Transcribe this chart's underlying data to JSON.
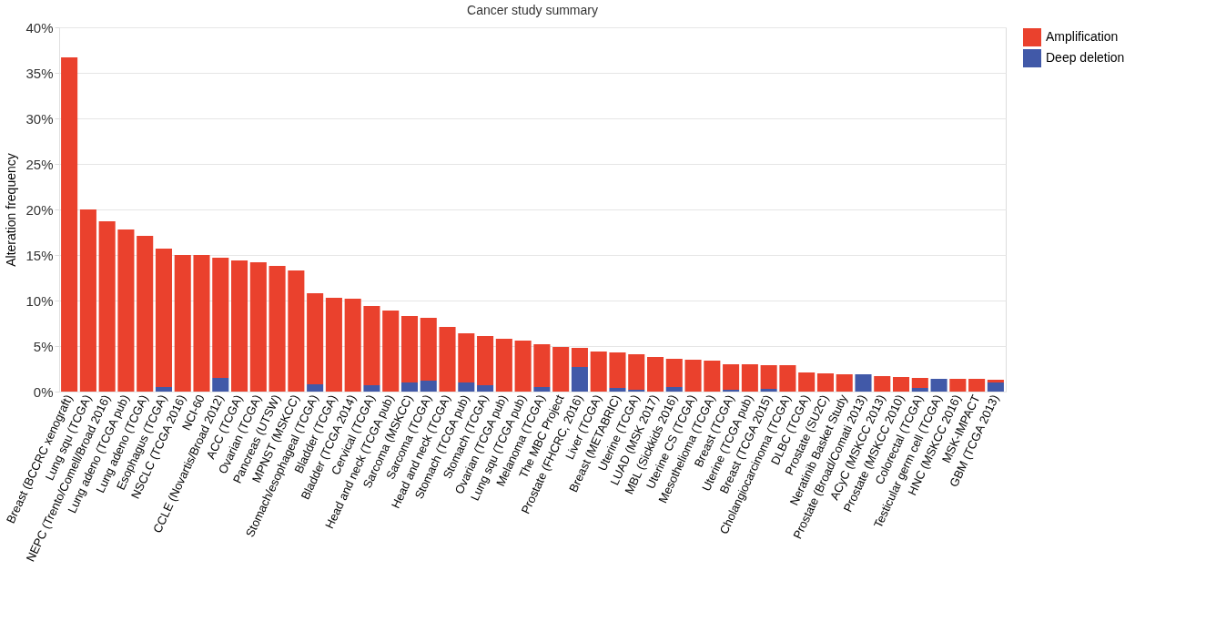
{
  "chart_data": {
    "type": "bar",
    "title": "Cancer study summary",
    "ylabel": "Alteration frequency",
    "categories": [
      "Breast (BCCRC xenograft)",
      "Lung squ (TCGA)",
      "NEPC (Trento/Comell/Broad 2016)",
      "Lung adeno (TCGA pub)",
      "Lung adeno (TCGA)",
      "Esophagus (TCGA)",
      "NSCLC (TCGA 2016)",
      "NCI-60",
      "CCLE (Novartis/Broad 2012)",
      "ACC (TCGA)",
      "Ovarian (TCGA)",
      "Pancreas (UTSW)",
      "MPNST (MSKCC)",
      "Stomach/esophageal (TCGA)",
      "Bladder (TCGA)",
      "Bladder (TCGA 2014)",
      "Cervical (TCGA)",
      "Head and neck (TCGA pub)",
      "Sarcoma (MSKCC)",
      "Sarcoma (TCGA)",
      "Head and neck (TCGA)",
      "Stomach (TCGA pub)",
      "Stomach (TCGA)",
      "Ovarian (TCGA pub)",
      "Lung squ (TCGA pub)",
      "Melanoma (TCGA)",
      "The MBC Project",
      "Prostate (FHCRC, 2016)",
      "Liver (TCGA)",
      "Breast (METABRIC)",
      "Uterine (TCGA)",
      "LUAD (MSK 2017)",
      "MBL (Sickkids 2016)",
      "Uterine CS (TCGA)",
      "Mesothelioma (TCGA)",
      "Breast (TCGA)",
      "Uterine (TCGA pub)",
      "Breast (TCGA 2015)",
      "Cholangiocarcinoma (TCGA)",
      "DLBC (TCGA)",
      "Prostate (SU2C)",
      "Neratinib Basket Study",
      "Prostate (Broad/Comati 2013)",
      "ACyC (MSKCC 2013)",
      "Prostate (MSKCC 2010)",
      "Colorectal (TCGA)",
      "Testicular germ cell (TCGA)",
      "HNC (MSKCC 2016)",
      "MSK-IMPACT",
      "GBM (TCGA 2013)"
    ],
    "stacked": true,
    "series": [
      {
        "name": "Deep deletion",
        "color": "#4159a8",
        "values": [
          0,
          0,
          0,
          0,
          0,
          0.5,
          0,
          0,
          1.5,
          0,
          0,
          0,
          0,
          0.8,
          0,
          0,
          0.7,
          0,
          1.0,
          1.2,
          0,
          1.0,
          0.7,
          0,
          0,
          0.5,
          0,
          2.7,
          0,
          0.4,
          0.2,
          0,
          0.5,
          0,
          0,
          0.2,
          0,
          0.3,
          0,
          0,
          0,
          0,
          1.9,
          0,
          0,
          0.4,
          1.4,
          0,
          0,
          1.0
        ]
      },
      {
        "name": "Amplification",
        "color": "#ea412d",
        "values": [
          36.7,
          20.0,
          18.7,
          17.8,
          17.1,
          15.2,
          15.0,
          15.0,
          13.2,
          14.4,
          14.2,
          13.8,
          13.3,
          10.0,
          10.3,
          10.2,
          8.7,
          8.9,
          7.3,
          6.9,
          7.1,
          5.4,
          5.4,
          5.8,
          5.6,
          4.7,
          4.9,
          2.1,
          4.4,
          3.9,
          3.9,
          3.8,
          3.1,
          3.5,
          3.4,
          2.8,
          3.0,
          2.6,
          2.9,
          2.1,
          2.0,
          1.9,
          0,
          1.7,
          1.6,
          1.1,
          0,
          1.4,
          1.4,
          0.3
        ]
      }
    ],
    "ylim": [
      0,
      40
    ],
    "yticks": [
      {
        "value": 0,
        "label": "0%"
      },
      {
        "value": 5,
        "label": "5%"
      },
      {
        "value": 10,
        "label": "10%"
      },
      {
        "value": 15,
        "label": "15%"
      },
      {
        "value": 20,
        "label": "20%"
      },
      {
        "value": 25,
        "label": "25%"
      },
      {
        "value": 30,
        "label": "30%"
      },
      {
        "value": 35,
        "label": "35%"
      },
      {
        "value": 40,
        "label": "40%"
      }
    ],
    "grid": "y",
    "legend": "top right"
  }
}
